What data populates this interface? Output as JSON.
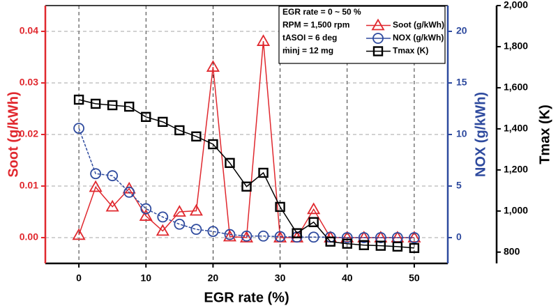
{
  "chart_data": {
    "type": "line",
    "x": [
      0,
      2.5,
      5,
      7.5,
      10,
      12.5,
      15,
      17.5,
      20,
      22.5,
      25,
      27.5,
      30,
      32.5,
      35,
      37.5,
      40,
      42.5,
      45,
      47.5,
      50
    ],
    "series": [
      {
        "name": "Soot (g/kWh)",
        "color": "#e0282e",
        "marker": "triangle",
        "axis": "y",
        "values": [
          0.0005,
          0.0098,
          0.006,
          0.0095,
          0.0042,
          0.0013,
          0.005,
          0.0052,
          0.0331,
          0.0002,
          0.0,
          0.0381,
          0.0,
          0.0,
          0.0055,
          0.0,
          0.0,
          0.0,
          0.0,
          0.0,
          0.0
        ]
      },
      {
        "name": "NOX (g/kWh)",
        "color": "#2e4a9e",
        "marker": "circle",
        "axis": "y2",
        "values": [
          10.6,
          6.2,
          6.0,
          4.4,
          2.8,
          2.0,
          1.3,
          0.8,
          0.6,
          0.3,
          0.15,
          0.15,
          0.1,
          0.05,
          0.05,
          0.05,
          0.0,
          0.0,
          0.0,
          0.0,
          0.0
        ]
      },
      {
        "name": "Tmax (K)",
        "color": "#000000",
        "marker": "square",
        "axis": "y3",
        "values": [
          1542,
          1522,
          1515,
          1508,
          1458,
          1434,
          1393,
          1363,
          1325,
          1234,
          1119,
          1186,
          1020,
          892,
          946,
          851,
          841,
          834,
          831,
          827,
          820
        ]
      }
    ],
    "x_label": "EGR rate (%)",
    "y_label": "Soot (g/kWh)",
    "y2_label": "NOX (g/kWh)",
    "y3_label": "Tmax (K)",
    "xlim": [
      -5,
      55
    ],
    "xticks": [
      0,
      10,
      20,
      30,
      40,
      50
    ],
    "ylim": [
      -0.005,
      0.045
    ],
    "yticks": [
      {
        "value": 0,
        "label": "0.00"
      },
      0.01,
      0.02,
      0.03,
      0.04
    ],
    "y2lim": [
      -2.5,
      22.5
    ],
    "y2ticks": [
      0,
      5,
      10,
      15,
      20
    ],
    "y3lim": [
      745,
      2000
    ],
    "y3ticks": [
      {
        "value": 800,
        "label": "800"
      },
      {
        "value": 1000,
        "label": "1,000"
      },
      {
        "value": 1200,
        "label": "1,200"
      },
      {
        "value": 1400,
        "label": "1,400"
      },
      {
        "value": 1600,
        "label": "1,600"
      },
      {
        "value": 1800,
        "label": "1,800"
      },
      {
        "value": 2000,
        "label": "2,000"
      }
    ],
    "annotations": [
      "EGR rate = 0 ~ 50 %",
      "RPM = 1,500 rpm",
      "tASOI = 6 deg",
      "ṁinj = 12 mg"
    ],
    "grid": true
  }
}
